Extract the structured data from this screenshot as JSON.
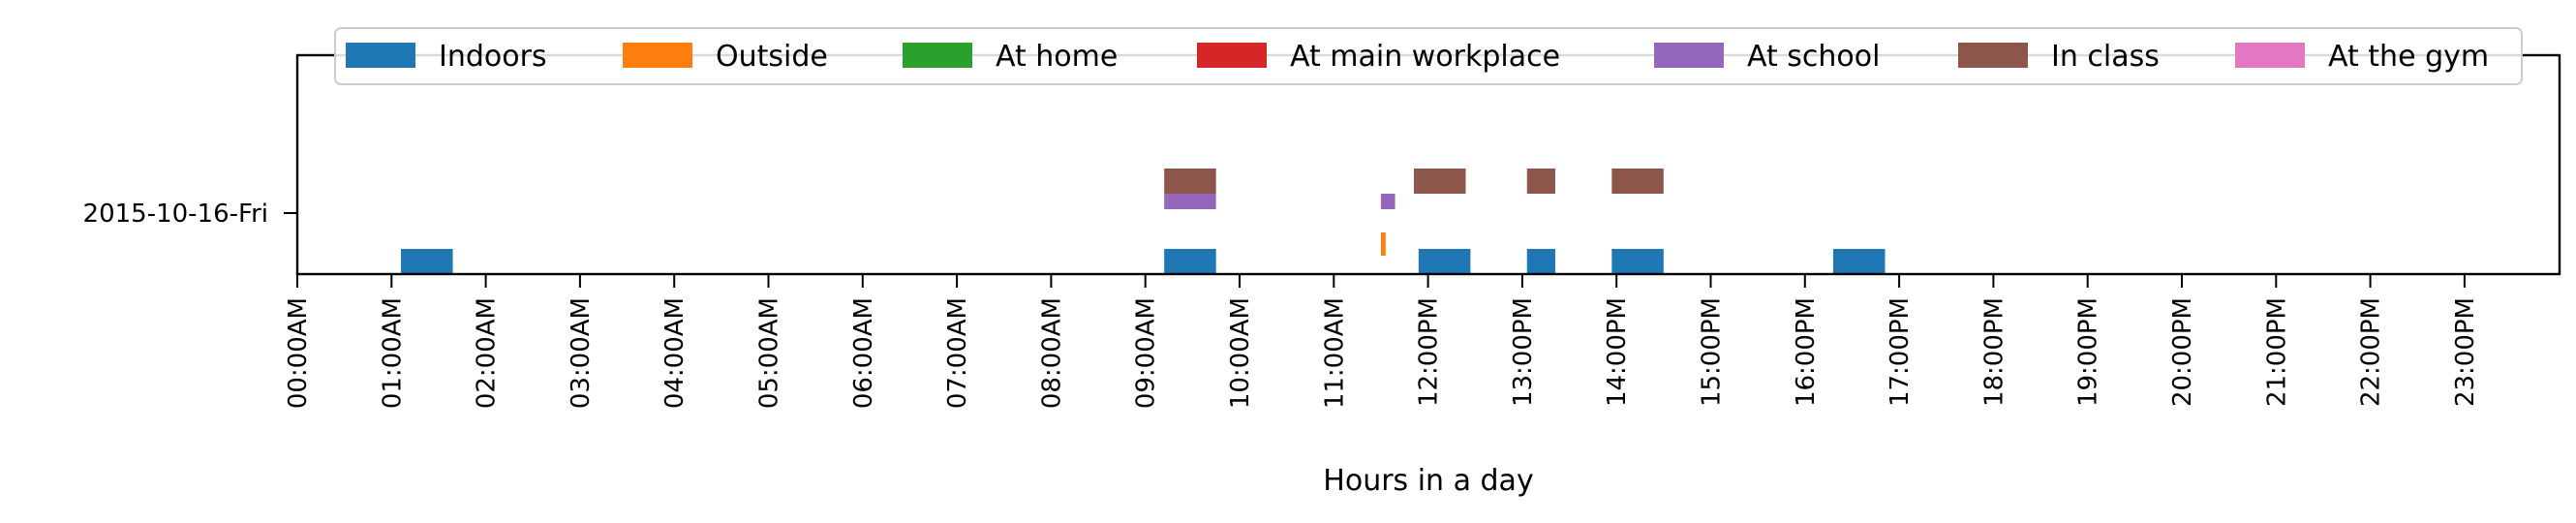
{
  "chart_data": {
    "type": "bar",
    "title": "",
    "xlabel": "Hours in a day",
    "ylabel": "",
    "xlim_hours": [
      0,
      24
    ],
    "x_ticks": [
      "00:00AM",
      "01:00AM",
      "02:00AM",
      "03:00AM",
      "04:00AM",
      "05:00AM",
      "06:00AM",
      "07:00AM",
      "08:00AM",
      "09:00AM",
      "10:00AM",
      "11:00AM",
      "12:00PM",
      "13:00PM",
      "14:00PM",
      "15:00PM",
      "16:00PM",
      "17:00PM",
      "18:00PM",
      "19:00PM",
      "20:00PM",
      "21:00PM",
      "22:00PM",
      "23:00PM"
    ],
    "y_category": "2015-10-16-Fri",
    "grid": false,
    "legend_position": "top",
    "series": [
      {
        "name": "Indoors",
        "color": "#1f77b4",
        "intervals": [
          [
            1.1,
            1.65
          ],
          [
            9.2,
            9.75
          ],
          [
            11.9,
            12.45
          ],
          [
            13.05,
            13.35
          ],
          [
            13.95,
            14.5
          ],
          [
            16.3,
            16.85
          ]
        ]
      },
      {
        "name": "Outside",
        "color": "#ff7f0e",
        "intervals": [
          [
            11.5,
            11.55
          ]
        ]
      },
      {
        "name": "At home",
        "color": "#2ca02c",
        "intervals": []
      },
      {
        "name": "At main workplace",
        "color": "#d62728",
        "intervals": []
      },
      {
        "name": "At school",
        "color": "#9467bd",
        "intervals": [
          [
            9.2,
            9.75
          ],
          [
            11.5,
            11.65
          ]
        ]
      },
      {
        "name": "In class",
        "color": "#8c564b",
        "intervals": [
          [
            9.2,
            9.75
          ],
          [
            11.85,
            12.4
          ],
          [
            13.05,
            13.35
          ],
          [
            13.95,
            14.5
          ]
        ]
      },
      {
        "name": "At the gym",
        "color": "#e377c2",
        "intervals": []
      }
    ]
  }
}
